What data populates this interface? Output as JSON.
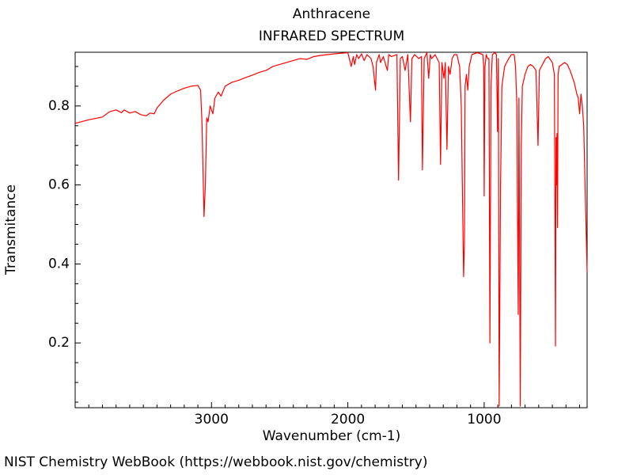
{
  "chart_data": {
    "type": "line",
    "title": "Anthracene",
    "subtitle": "INFRARED SPECTRUM",
    "x_label": "Wavenumber (cm-1)",
    "y_label": "Transmitance",
    "footer": "NIST Chemistry WebBook (https://webbook.nist.gov/chemistry)",
    "color": "#ff0000",
    "xlim": [
      4000,
      245
    ],
    "ylim": [
      0.036,
      0.936
    ],
    "xticks": [
      3000,
      2000,
      1000
    ],
    "yticks": [
      0.2,
      0.4,
      0.6,
      0.8
    ],
    "xminorticks": [
      3900,
      3800,
      3700,
      3600,
      3500,
      3400,
      3300,
      3200,
      3100,
      2900,
      2800,
      2700,
      2600,
      2500,
      2400,
      2300,
      2200,
      2100,
      1900,
      1800,
      1700,
      1600,
      1500,
      1400,
      1300,
      1200,
      1100,
      900,
      800,
      700,
      600,
      500,
      400,
      300
    ],
    "yminorticks": [
      0.05,
      0.1,
      0.15,
      0.25,
      0.3,
      0.35,
      0.45,
      0.5,
      0.55,
      0.65,
      0.7,
      0.75,
      0.85,
      0.9
    ],
    "x": [
      4000,
      3900,
      3800,
      3750,
      3700,
      3660,
      3640,
      3600,
      3560,
      3520,
      3480,
      3450,
      3420,
      3400,
      3350,
      3300,
      3250,
      3200,
      3150,
      3100,
      3080,
      3070,
      3055,
      3045,
      3035,
      3025,
      3010,
      2990,
      2975,
      2950,
      2930,
      2900,
      2850,
      2800,
      2750,
      2700,
      2650,
      2600,
      2550,
      2500,
      2450,
      2400,
      2350,
      2300,
      2250,
      2200,
      2100,
      2000,
      1975,
      1960,
      1950,
      1935,
      1920,
      1900,
      1880,
      1860,
      1830,
      1815,
      1797,
      1790,
      1770,
      1760,
      1740,
      1710,
      1700,
      1680,
      1640,
      1628,
      1615,
      1600,
      1580,
      1560,
      1541,
      1530,
      1510,
      1480,
      1460,
      1453,
      1440,
      1420,
      1407,
      1395,
      1385,
      1360,
      1330,
      1320,
      1310,
      1295,
      1285,
      1273,
      1262,
      1250,
      1235,
      1220,
      1200,
      1180,
      1168,
      1151,
      1145,
      1140,
      1130,
      1120,
      1110,
      1090,
      1050,
      1010,
      1003,
      1000,
      994,
      985,
      975,
      965,
      958,
      950,
      940,
      920,
      910,
      902,
      896,
      890,
      880,
      870,
      850,
      820,
      800,
      780,
      770,
      760,
      756,
      750,
      745,
      735,
      728,
      720,
      700,
      680,
      660,
      640,
      620,
      605,
      595,
      580,
      550,
      530,
      520,
      500,
      485,
      477,
      473,
      470,
      466,
      462,
      458,
      450,
      430,
      410,
      390,
      370,
      350,
      340,
      320,
      310,
      300,
      290,
      280,
      270,
      260,
      245
    ],
    "values": [
      0.756,
      0.765,
      0.772,
      0.785,
      0.79,
      0.783,
      0.79,
      0.782,
      0.786,
      0.778,
      0.775,
      0.782,
      0.78,
      0.795,
      0.815,
      0.83,
      0.838,
      0.845,
      0.85,
      0.852,
      0.84,
      0.76,
      0.52,
      0.6,
      0.77,
      0.76,
      0.8,
      0.78,
      0.82,
      0.835,
      0.825,
      0.85,
      0.86,
      0.865,
      0.872,
      0.878,
      0.885,
      0.89,
      0.9,
      0.905,
      0.91,
      0.915,
      0.92,
      0.918,
      0.925,
      0.928,
      0.932,
      0.935,
      0.9,
      0.925,
      0.905,
      0.93,
      0.92,
      0.932,
      0.915,
      0.93,
      0.92,
      0.9,
      0.84,
      0.91,
      0.93,
      0.91,
      0.925,
      0.89,
      0.93,
      0.925,
      0.93,
      0.612,
      0.92,
      0.925,
      0.89,
      0.93,
      0.76,
      0.92,
      0.93,
      0.92,
      0.925,
      0.638,
      0.92,
      0.935,
      0.87,
      0.93,
      0.92,
      0.93,
      0.91,
      0.652,
      0.91,
      0.87,
      0.91,
      0.69,
      0.9,
      0.88,
      0.92,
      0.93,
      0.93,
      0.9,
      0.8,
      0.368,
      0.45,
      0.85,
      0.88,
      0.84,
      0.9,
      0.93,
      0.935,
      0.93,
      0.9,
      0.572,
      0.9,
      0.93,
      0.92,
      0.92,
      0.2,
      0.85,
      0.93,
      0.935,
      0.93,
      0.735,
      0.92,
      0.04,
      0.6,
      0.85,
      0.9,
      0.92,
      0.93,
      0.93,
      0.9,
      0.8,
      0.55,
      0.272,
      0.82,
      0.04,
      0.7,
      0.85,
      0.88,
      0.9,
      0.905,
      0.9,
      0.89,
      0.7,
      0.89,
      0.9,
      0.92,
      0.925,
      0.92,
      0.91,
      0.88,
      0.192,
      0.72,
      0.6,
      0.73,
      0.492,
      0.88,
      0.9,
      0.905,
      0.91,
      0.905,
      0.89,
      0.87,
      0.86,
      0.83,
      0.82,
      0.78,
      0.83,
      0.8,
      0.75,
      0.6,
      0.38
    ]
  }
}
